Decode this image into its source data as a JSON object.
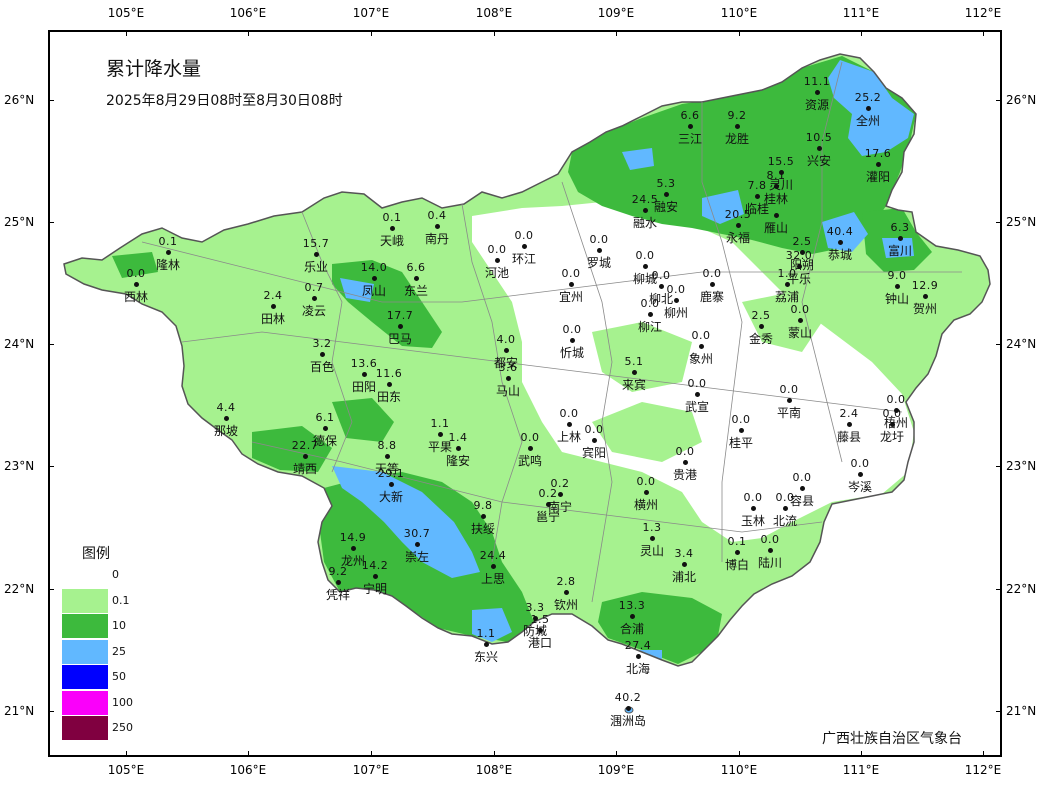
{
  "title": "累计降水量",
  "subtitle": "2025年8月29日08时至8月30日08时",
  "agency": "广西壮族自治区气象台",
  "lon_ticks": [
    "105°E",
    "106°E",
    "107°E",
    "108°E",
    "109°E",
    "110°E",
    "111°E",
    "112°E"
  ],
  "lat_ticks": [
    "26°N",
    "25°N",
    "24°N",
    "23°N",
    "22°N",
    "21°N"
  ],
  "legend": {
    "title": "图例",
    "items": [
      {
        "label": "0",
        "color": "#ffffff"
      },
      {
        "label": "0.1",
        "color": "#a6f28f"
      },
      {
        "label": "10",
        "color": "#3dba3d"
      },
      {
        "label": "25",
        "color": "#61b8ff"
      },
      {
        "label": "50",
        "color": "#0000fe"
      },
      {
        "label": "100",
        "color": "#fa00fa"
      },
      {
        "label": "250",
        "color": "#800040"
      }
    ]
  },
  "stations": [
    {
      "name": "资源",
      "value": "11.1"
    },
    {
      "name": "全州",
      "value": "25.2"
    },
    {
      "name": "三江",
      "value": "6.6"
    },
    {
      "name": "龙胜",
      "value": "9.2"
    },
    {
      "name": "兴安",
      "value": "10.5"
    },
    {
      "name": "灌阳",
      "value": "17.6"
    },
    {
      "name": "灵川",
      "value": "15.5"
    },
    {
      "name": "融安",
      "value": "5.3"
    },
    {
      "name": "桂林",
      "value": "8.1"
    },
    {
      "name": "融水",
      "value": "24.5"
    },
    {
      "name": "临桂",
      "value": "7.8"
    },
    {
      "name": "阳朔",
      "value": "2.5"
    },
    {
      "name": "永福",
      "value": "20.5"
    },
    {
      "name": "雁山",
      "value": ""
    },
    {
      "name": "恭城",
      "value": "40.4"
    },
    {
      "name": "富川",
      "value": "6.3"
    },
    {
      "name": "平乐",
      "value": "32.0"
    },
    {
      "name": "钟山",
      "value": "9.0"
    },
    {
      "name": "贺州",
      "value": "12.9"
    },
    {
      "name": "天峨",
      "value": "0.1"
    },
    {
      "name": "南丹",
      "value": "0.4"
    },
    {
      "name": "隆林",
      "value": "0.1"
    },
    {
      "name": "乐业",
      "value": "15.7"
    },
    {
      "name": "河池",
      "value": "0.0"
    },
    {
      "name": "环江",
      "value": "0.0"
    },
    {
      "name": "罗城",
      "value": "0.0"
    },
    {
      "name": "西林",
      "value": "0.0"
    },
    {
      "name": "凤山",
      "value": "14.0"
    },
    {
      "name": "东兰",
      "value": "6.6"
    },
    {
      "name": "宜州",
      "value": "0.0"
    },
    {
      "name": "柳城",
      "value": "0.0"
    },
    {
      "name": "鹿寨",
      "value": "0.0"
    },
    {
      "name": "荔浦",
      "value": "1.0"
    },
    {
      "name": "田林",
      "value": "2.4"
    },
    {
      "name": "凌云",
      "value": "0.7"
    },
    {
      "name": "柳北",
      "value": "0.0"
    },
    {
      "name": "柳州",
      "value": "0.0"
    },
    {
      "name": "柳江",
      "value": "0.0"
    },
    {
      "name": "蒙山",
      "value": "0.0"
    },
    {
      "name": "巴马",
      "value": "17.7"
    },
    {
      "name": "金秀",
      "value": "2.5"
    },
    {
      "name": "忻城",
      "value": "0.0"
    },
    {
      "name": "百色",
      "value": "3.2"
    },
    {
      "name": "都安",
      "value": "4.0"
    },
    {
      "name": "象州",
      "value": "0.0"
    },
    {
      "name": "田阳",
      "value": "13.6"
    },
    {
      "name": "马山",
      "value": "3.6"
    },
    {
      "name": "来宾",
      "value": "5.1"
    },
    {
      "name": "田东",
      "value": "11.6"
    },
    {
      "name": "武宣",
      "value": "0.0"
    },
    {
      "name": "平南",
      "value": "0.0"
    },
    {
      "name": "那坡",
      "value": "4.4"
    },
    {
      "name": "梧州",
      "value": "0.0"
    },
    {
      "name": "龙圩",
      "value": "0.0"
    },
    {
      "name": "德保",
      "value": "6.1"
    },
    {
      "name": "平果",
      "value": "1.1"
    },
    {
      "name": "上林",
      "value": "0.0"
    },
    {
      "name": "藤县",
      "value": "2.4"
    },
    {
      "name": "隆安",
      "value": "1.4"
    },
    {
      "name": "宾阳",
      "value": "0.0"
    },
    {
      "name": "桂平",
      "value": "0.0"
    },
    {
      "name": "武鸣",
      "value": "0.0"
    },
    {
      "name": "靖西",
      "value": "22.7"
    },
    {
      "name": "天等",
      "value": "8.8"
    },
    {
      "name": "贵港",
      "value": "0.0"
    },
    {
      "name": "岑溪",
      "value": "0.0"
    },
    {
      "name": "大新",
      "value": "29.1"
    },
    {
      "name": "横州",
      "value": "0.0"
    },
    {
      "name": "南宁",
      "value": "0.2"
    },
    {
      "name": "容县",
      "value": "0.0"
    },
    {
      "name": "邕宁",
      "value": "0.2"
    },
    {
      "name": "玉林",
      "value": "0.0"
    },
    {
      "name": "北流",
      "value": "0.0"
    },
    {
      "name": "扶绥",
      "value": "9.8"
    },
    {
      "name": "灵山",
      "value": "1.3"
    },
    {
      "name": "崇左",
      "value": "30.7"
    },
    {
      "name": "龙州",
      "value": "14.9"
    },
    {
      "name": "博白",
      "value": "0.1"
    },
    {
      "name": "陆川",
      "value": "0.0"
    },
    {
      "name": "浦北",
      "value": "3.4"
    },
    {
      "name": "上思",
      "value": "24.4"
    },
    {
      "name": "凭祥",
      "value": "9.2"
    },
    {
      "name": "宁明",
      "value": "14.2"
    },
    {
      "name": "钦州",
      "value": "2.8"
    },
    {
      "name": "防城",
      "value": "3.3"
    },
    {
      "name": "港口",
      "value": "1.5"
    },
    {
      "name": "合浦",
      "value": "13.3"
    },
    {
      "name": "东兴",
      "value": "1.1"
    },
    {
      "name": "北海",
      "value": "27.4"
    },
    {
      "name": "涠洲岛",
      "value": "40.2"
    }
  ]
}
